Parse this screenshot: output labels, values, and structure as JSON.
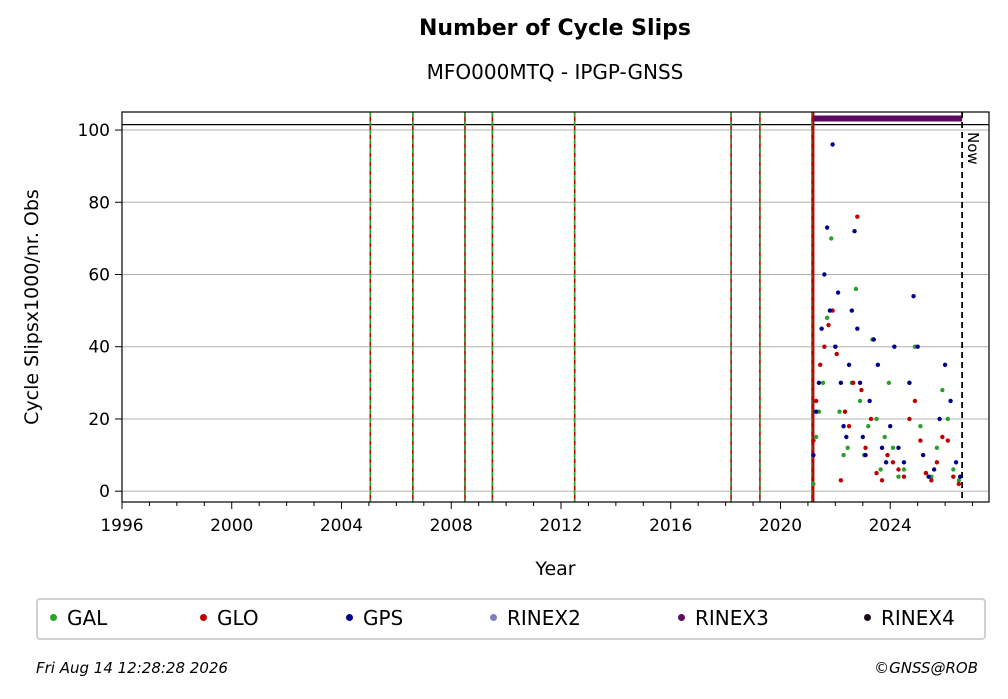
{
  "chart_data": {
    "type": "scatter",
    "title": "Number of Cycle Slips",
    "subtitle": "MFO000MTQ - IPGP-GNSS",
    "xlabel": "Year",
    "ylabel": "Cycle Slipsx1000/nr. Obs",
    "xlim": [
      1996,
      2027.6
    ],
    "ylim": [
      -3,
      105
    ],
    "xticks": [
      1996,
      2000,
      2004,
      2008,
      2012,
      2016,
      2020,
      2024
    ],
    "yticks": [
      0,
      20,
      40,
      60,
      80,
      100
    ],
    "grid": "horizontal",
    "hline_y": 101.5,
    "event_lines_x": [
      2005.05,
      2006.6,
      2008.5,
      2009.5,
      2012.5,
      2018.2,
      2019.25,
      2021.15
    ],
    "data_start_x": 2021.2,
    "now_x": 2026.62,
    "now_label": "Now",
    "rinex3_bar": {
      "x_start": 2021.2,
      "x_end": 2026.62,
      "y": 103.2,
      "color": "#5c0a5f"
    },
    "series": [
      {
        "name": "GAL",
        "color": "#2ca02c",
        "x": [
          2021.2,
          2021.3,
          2021.4,
          2021.55,
          2021.7,
          2021.85,
          2022.0,
          2022.15,
          2022.3,
          2022.45,
          2022.6,
          2022.75,
          2022.9,
          2023.05,
          2023.2,
          2023.35,
          2023.5,
          2023.65,
          2023.8,
          2023.95,
          2024.1,
          2024.3,
          2024.5,
          2024.7,
          2024.9,
          2025.1,
          2025.3,
          2025.5,
          2025.7,
          2025.9,
          2026.1,
          2026.3,
          2026.5
        ],
        "y": [
          2,
          15,
          22,
          30,
          48,
          70,
          40,
          22,
          10,
          12,
          30,
          56,
          25,
          10,
          18,
          42,
          20,
          6,
          15,
          30,
          12,
          4,
          6,
          30,
          40,
          18,
          5,
          4,
          12,
          28,
          20,
          6,
          3
        ]
      },
      {
        "name": "GLO",
        "color": "#c00000",
        "x": [
          2021.2,
          2021.3,
          2021.45,
          2021.6,
          2021.75,
          2021.9,
          2022.05,
          2022.2,
          2022.35,
          2022.5,
          2022.65,
          2022.8,
          2022.95,
          2023.1,
          2023.3,
          2023.5,
          2023.7,
          2023.9,
          2024.1,
          2024.3,
          2024.5,
          2024.7,
          2024.9,
          2025.1,
          2025.3,
          2025.5,
          2025.7,
          2025.9,
          2026.1,
          2026.3,
          2026.5
        ],
        "y": [
          14,
          25,
          35,
          40,
          46,
          50,
          38,
          3,
          22,
          18,
          30,
          76,
          28,
          12,
          20,
          5,
          3,
          10,
          8,
          6,
          4,
          20,
          25,
          14,
          5,
          3,
          8,
          15,
          14,
          4,
          2
        ]
      },
      {
        "name": "GPS",
        "color": "#00008b",
        "x": [
          2021.2,
          2021.3,
          2021.4,
          2021.5,
          2021.6,
          2021.7,
          2021.8,
          2021.9,
          2022.0,
          2022.1,
          2022.2,
          2022.3,
          2022.4,
          2022.5,
          2022.6,
          2022.7,
          2022.8,
          2022.9,
          2023.0,
          2023.1,
          2023.25,
          2023.4,
          2023.55,
          2023.7,
          2023.85,
          2024.0,
          2024.15,
          2024.3,
          2024.5,
          2024.7,
          2024.85,
          2025.0,
          2025.2,
          2025.4,
          2025.6,
          2025.8,
          2026.0,
          2026.2,
          2026.4,
          2026.55
        ],
        "y": [
          10,
          22,
          30,
          45,
          60,
          73,
          50,
          96,
          40,
          55,
          30,
          18,
          15,
          35,
          50,
          72,
          45,
          30,
          15,
          10,
          25,
          42,
          35,
          12,
          8,
          18,
          40,
          12,
          8,
          30,
          54,
          40,
          10,
          4,
          6,
          20,
          35,
          25,
          8,
          4
        ]
      },
      {
        "name": "RINEX2",
        "color": "#7f7fbf",
        "x": [],
        "y": []
      },
      {
        "name": "RINEX3",
        "color": "#5c0a5f",
        "x": [],
        "y": []
      },
      {
        "name": "RINEX4",
        "color": "#1a0a1a",
        "x": [],
        "y": []
      }
    ]
  },
  "footer": {
    "timestamp": "Fri Aug 14 12:28:28 2026",
    "credit": "©GNSS@ROB"
  }
}
